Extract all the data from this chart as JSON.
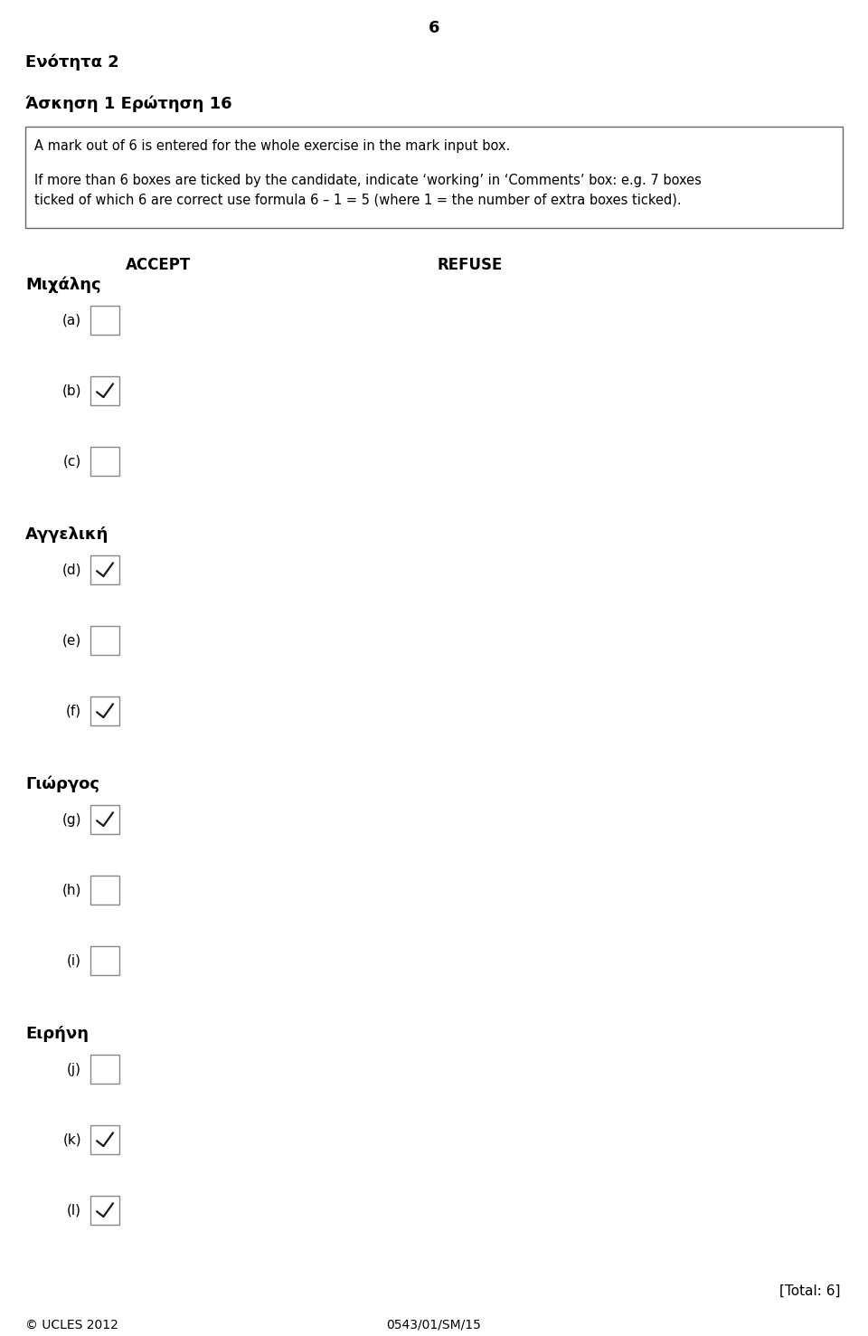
{
  "page_number": "6",
  "title1": "Ενότητα 2",
  "title2": "Άσκηση 1 Ερώτηση 16",
  "info_box_line1": "A mark out of 6 is entered for the whole exercise in the mark input box.",
  "info_box_line2a": "If more than 6 boxes are ticked by the candidate, indicate ‘working’ in ‘Comments’ box: e.g. 7 boxes",
  "info_box_line2b": "ticked of which 6 are correct use formula 6 – 1 = 5 (where 1 = the number of extra boxes ticked).",
  "accept_label": "ACCEPT",
  "refuse_label": "REFUSE",
  "sections": [
    {
      "name": "Μιχάλης",
      "items": [
        {
          "label": "(a)",
          "ticked": false
        },
        {
          "label": "(b)",
          "ticked": true
        },
        {
          "label": "(c)",
          "ticked": false
        }
      ]
    },
    {
      "name": "Αγγελική",
      "items": [
        {
          "label": "(d)",
          "ticked": true
        },
        {
          "label": "(e)",
          "ticked": false
        },
        {
          "label": "(f)",
          "ticked": true
        }
      ]
    },
    {
      "name": "Γιώργος",
      "items": [
        {
          "label": "(g)",
          "ticked": true
        },
        {
          "label": "(h)",
          "ticked": false
        },
        {
          "label": "(i)",
          "ticked": false
        }
      ]
    },
    {
      "name": "Ειρήνη",
      "items": [
        {
          "label": "(j)",
          "ticked": false
        },
        {
          "label": "(k)",
          "ticked": true
        },
        {
          "label": "(l)",
          "ticked": true
        }
      ]
    }
  ],
  "total_label": "[Total: 6]",
  "footer_left": "© UCLES 2012",
  "footer_center": "0543/01/SM/15",
  "bg_color": "#ffffff",
  "text_color": "#000000",
  "box_edge_color": "#888888",
  "check_color": "#1a1a1a"
}
